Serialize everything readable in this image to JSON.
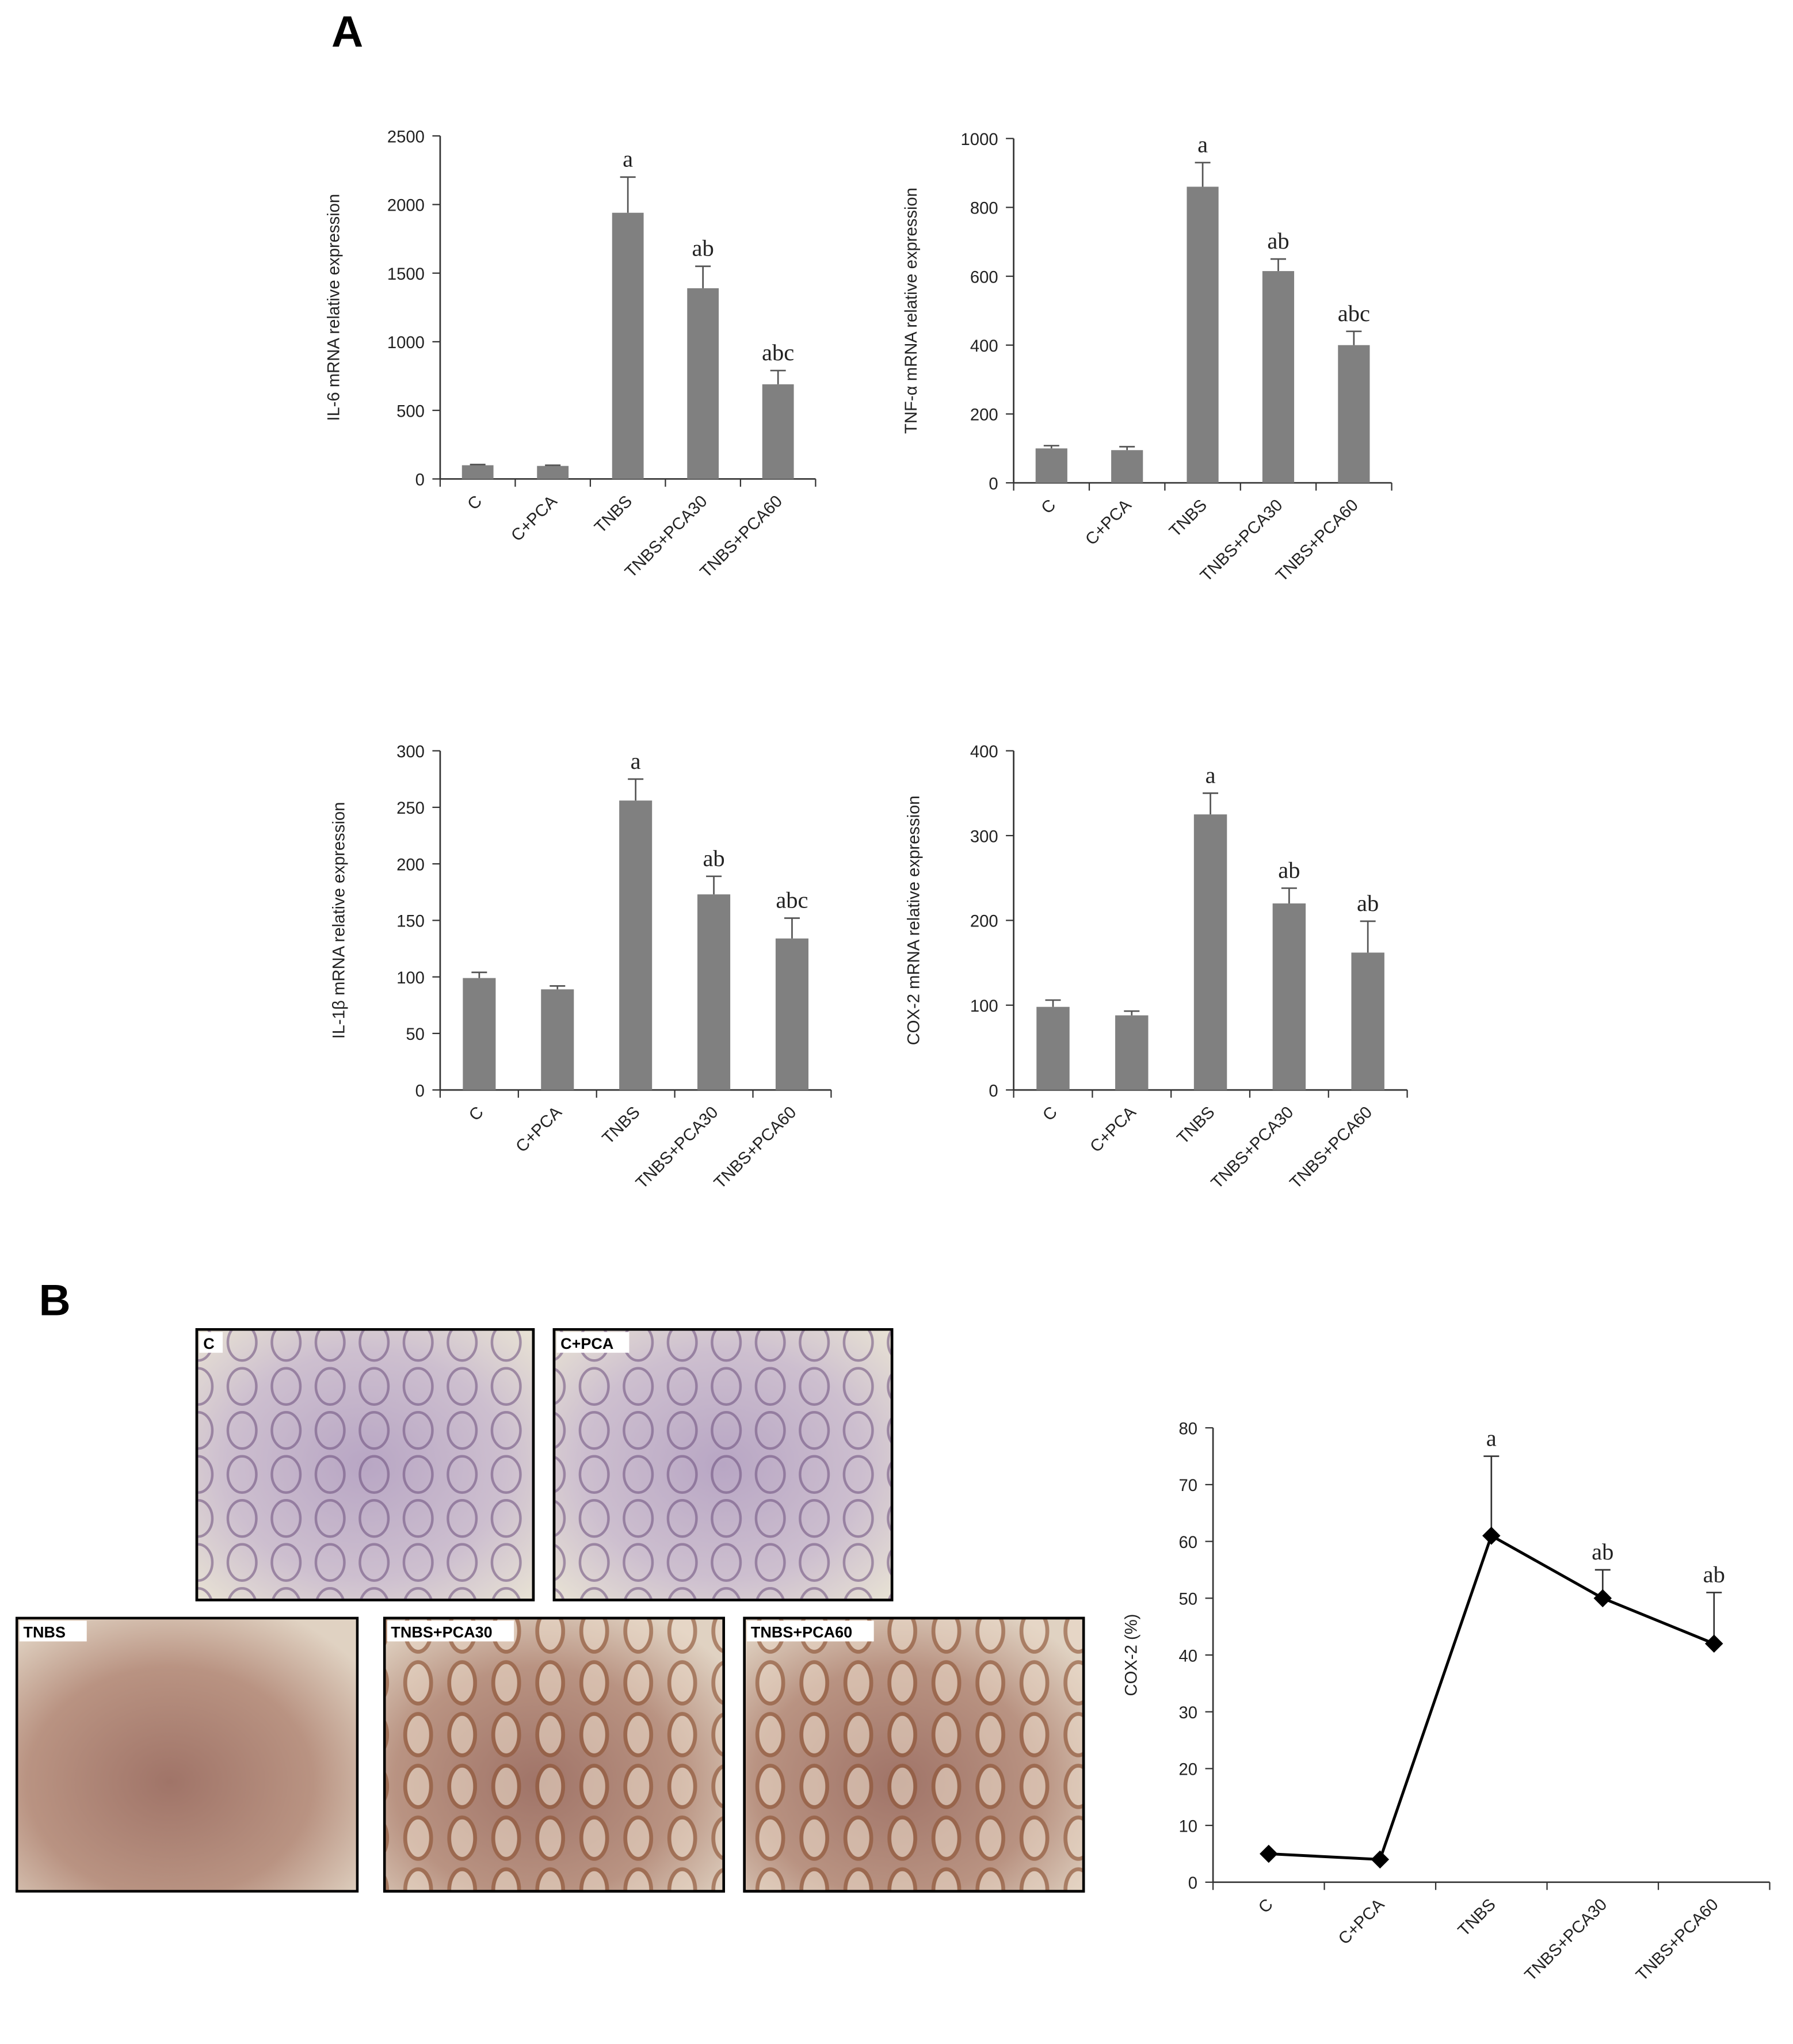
{
  "panel_labels": [
    "A",
    "B"
  ],
  "micrographs": [
    {
      "label": "C"
    },
    {
      "label": "C+PCA"
    },
    {
      "label": "TNBS"
    },
    {
      "label": "TNBS+PCA30"
    },
    {
      "label": "TNBS+PCA60"
    }
  ],
  "chart_data": [
    {
      "type": "bar",
      "y_label": "IL-6 mRNA relative  expression",
      "color": "#808080",
      "categories": [
        "C",
        "C+PCA",
        "TNBS",
        "TNBS+PCA30",
        "TNBS+PCA60"
      ],
      "values": [
        100,
        95,
        1940,
        1390,
        690
      ],
      "errors": [
        5,
        5,
        260,
        160,
        100
      ],
      "annotations": [
        null,
        null,
        "a",
        "ab",
        "abc"
      ],
      "ylim": [
        0,
        2500
      ],
      "yticks": [
        0,
        500,
        1000,
        1500,
        2000,
        2500
      ]
    },
    {
      "type": "bar",
      "y_label": "TNF-α mRNA relative  expression",
      "color": "#808080",
      "categories": [
        "C",
        "C+PCA",
        "TNBS",
        "TNBS+PCA30",
        "TNBS+PCA60"
      ],
      "values": [
        100,
        95,
        860,
        615,
        400
      ],
      "errors": [
        8,
        10,
        70,
        35,
        40
      ],
      "annotations": [
        null,
        null,
        "a",
        "ab",
        "abc"
      ],
      "ylim": [
        0,
        1000
      ],
      "yticks": [
        0,
        200,
        400,
        600,
        800,
        1000
      ]
    },
    {
      "type": "bar",
      "y_label": "IL-1β mRNA relative  expression",
      "color": "#808080",
      "categories": [
        "C",
        "C+PCA",
        "TNBS",
        "TNBS+PCA30",
        "TNBS+PCA60"
      ],
      "values": [
        99,
        89,
        256,
        173,
        134
      ],
      "errors": [
        5,
        3,
        19,
        16,
        18
      ],
      "annotations": [
        null,
        null,
        "a",
        "ab",
        "abc"
      ],
      "ylim": [
        0,
        300
      ],
      "yticks": [
        0,
        50,
        100,
        150,
        200,
        250,
        300
      ]
    },
    {
      "type": "bar",
      "y_label": "COX-2  mRNA relative  expression",
      "color": "#808080",
      "categories": [
        "C",
        "C+PCA",
        "TNBS",
        "TNBS+PCA30",
        "TNBS+PCA60"
      ],
      "values": [
        98,
        88,
        325,
        220,
        162
      ],
      "errors": [
        8,
        5,
        25,
        18,
        37
      ],
      "annotations": [
        null,
        null,
        "a",
        "ab",
        "ab"
      ],
      "ylim": [
        0,
        400
      ],
      "yticks": [
        0,
        100,
        200,
        300,
        400
      ]
    },
    {
      "type": "line",
      "y_label": "COX-2  (%)",
      "color": "#000000",
      "categories": [
        "C",
        "C+PCA",
        "TNBS",
        "TNBS+PCA30",
        "TNBS+PCA60"
      ],
      "values": [
        5,
        4,
        61,
        50,
        42
      ],
      "errors": [
        0,
        0,
        14,
        5,
        9
      ],
      "annotations": [
        null,
        null,
        "a",
        "ab",
        "ab"
      ],
      "ylim": [
        0,
        80
      ],
      "yticks": [
        0,
        10,
        20,
        30,
        40,
        50,
        60,
        70,
        80
      ]
    }
  ]
}
